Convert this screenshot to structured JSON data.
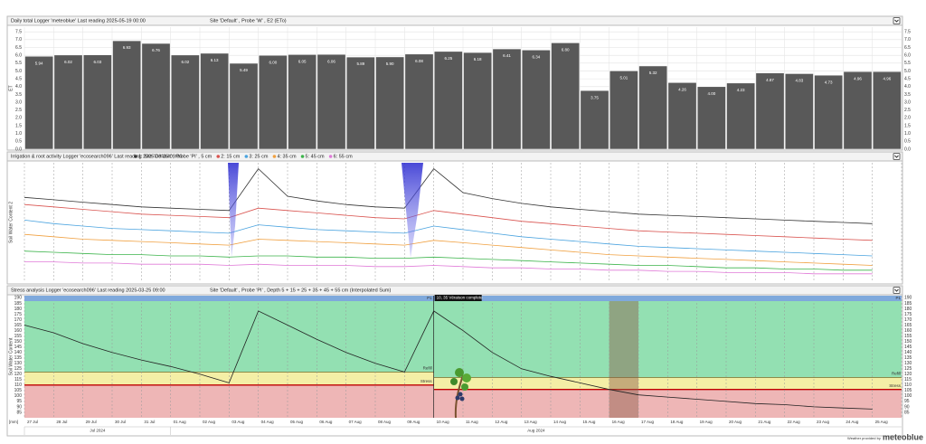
{
  "chart_data": [
    {
      "type": "bar",
      "title": "Daily total   Logger 'meteoblue'   Last reading 2025-05-19 00:00",
      "selector": "Site 'Default' , Probe 'W' , E2 (ETo)",
      "ylabel": "ET",
      "values": [
        5.94,
        6.02,
        6.03,
        6.93,
        6.76,
        6.02,
        6.13,
        5.49,
        6.0,
        6.05,
        6.06,
        5.89,
        5.9,
        6.08,
        6.25,
        6.18,
        6.41,
        6.34,
        6.8,
        3.75,
        5.01,
        5.32,
        4.26,
        4.0,
        4.23,
        4.87,
        4.83,
        4.73,
        4.96,
        4.96
      ],
      "value_labels": [
        "5.94",
        "6.02",
        "6.03",
        "6.93",
        "6.76",
        "6.02",
        "6.13",
        "5.49",
        "6.00",
        "6.05",
        "6.06",
        "5.89",
        "5.90",
        "6.08",
        "6.25",
        "6.18",
        "6.41",
        "6.34",
        "6.80",
        "3.75",
        "5.01",
        "5.32",
        "4.26",
        "4.00",
        "4.23",
        "4.87",
        "4.83",
        "4.73",
        "4.96",
        "4.96"
      ],
      "color": "#595959",
      "ylim": [
        0,
        7.8
      ],
      "yticks": [
        {
          "value": 0,
          "label": "0.0"
        },
        0.5,
        {
          "value": 1,
          "label": "1.0"
        },
        1.5,
        {
          "value": 2,
          "label": "2.0"
        },
        2.5,
        {
          "value": 3,
          "label": "3.0"
        },
        3.5,
        {
          "value": 4,
          "label": "4.0"
        },
        4.5,
        {
          "value": 5,
          "label": "5.0"
        },
        5.5,
        {
          "value": 6,
          "label": "6.0"
        },
        6.5,
        {
          "value": 7,
          "label": "7.0"
        },
        7.5
      ],
      "grid": true
    },
    {
      "type": "line",
      "title": "Irrigation & root activity   Logger 'ecosearch096'   Last reading 2025-03-25 09:00",
      "ylabel": "Soil Water Content 2",
      "ylim": [
        0,
        100
      ],
      "series": [
        {
          "name": "1: Site 'Default' , Probe 'PI' , 5 cm",
          "color": "#333333",
          "values": [
            71,
            69,
            67,
            65,
            63,
            62,
            61,
            60,
            95,
            72,
            68,
            65,
            63,
            62,
            95,
            75,
            70,
            66,
            63,
            61,
            59,
            57,
            56,
            55,
            54,
            53,
            52,
            51,
            50,
            49
          ]
        },
        {
          "name": "2: 15 cm",
          "color": "#d9534f",
          "values": [
            65,
            63,
            61,
            59,
            57,
            56,
            55,
            54,
            62,
            60,
            58,
            56,
            54,
            53,
            60,
            57,
            54,
            51,
            49,
            47,
            45,
            43,
            42,
            41,
            40,
            39,
            38,
            37,
            36,
            35
          ]
        },
        {
          "name": "3: 25 cm",
          "color": "#4aa3df",
          "values": [
            52,
            49,
            47,
            45,
            44,
            43,
            42,
            41,
            48,
            46,
            44,
            43,
            42,
            41,
            47,
            44,
            41,
            38,
            36,
            34,
            32,
            30,
            29,
            28,
            27,
            26,
            25,
            24,
            23,
            22
          ]
        },
        {
          "name": "4: 35 cm",
          "color": "#f0a040",
          "values": [
            40,
            38,
            36,
            35,
            34,
            33,
            32,
            31,
            36,
            35,
            34,
            33,
            32,
            31,
            35,
            33,
            31,
            29,
            27,
            25,
            23,
            22,
            21,
            20,
            19,
            18,
            17,
            16,
            15,
            14
          ]
        },
        {
          "name": "5: 45 cm",
          "color": "#3cb44b",
          "values": [
            26,
            25,
            24,
            23,
            23,
            22,
            22,
            21,
            22,
            22,
            21,
            21,
            20,
            20,
            21,
            20,
            19,
            18,
            17,
            16,
            15,
            14,
            14,
            13,
            12,
            12,
            11,
            11,
            10,
            10
          ]
        },
        {
          "name": "6: 55 cm",
          "color": "#e07ad8",
          "values": [
            17,
            17,
            16,
            16,
            15,
            15,
            15,
            14,
            15,
            14,
            14,
            14,
            13,
            13,
            14,
            13,
            12,
            12,
            11,
            11,
            10,
            10,
            9,
            9,
            8,
            8,
            8,
            7,
            7,
            7
          ]
        }
      ]
    },
    {
      "type": "stress",
      "title": "Stress analysis   Logger 'ecosearch096'   Last reading 2025-03-25 09:00",
      "selector": "Site 'Default' , Probe 'PI' , Depth 5 + 15 + 25 + 35 + 45 + 55 cm (Interpolated Sum)",
      "ylabel": "Soil Water Content",
      "xlabel": "[mm]",
      "categories": [
        "27 Jul",
        "28 Jul",
        "29 Jul",
        "30 Jul",
        "31 Jul",
        "01 Aug",
        "02 Aug",
        "03 Aug",
        "04 Aug",
        "05 Aug",
        "06 Aug",
        "07 Aug",
        "08 Aug",
        "09 Aug",
        "10 Aug",
        "11 Aug",
        "12 Aug",
        "13 Aug",
        "14 Aug",
        "15 Aug",
        "16 Aug",
        "17 Aug",
        "18 Aug",
        "19 Aug",
        "20 Aug",
        "21 Aug",
        "22 Aug",
        "23 Aug",
        "24 Aug",
        "25 Aug"
      ],
      "month_labels": [
        "Jul 2024",
        "Aug 2024"
      ],
      "values": [
        165,
        158,
        148,
        140,
        133,
        127,
        120,
        112,
        178,
        165,
        152,
        140,
        130,
        122,
        178,
        160,
        140,
        125,
        118,
        112,
        106,
        101,
        99,
        97,
        95,
        93,
        92,
        90,
        89,
        88
      ],
      "color": "#222222",
      "ylim": [
        80,
        192
      ],
      "yticks": [
        85,
        90,
        95,
        100,
        105,
        110,
        115,
        120,
        125,
        130,
        135,
        140,
        145,
        150,
        155,
        160,
        165,
        170,
        175,
        180,
        185,
        190
      ],
      "thresholds": [
        {
          "label": "Refill",
          "color": "#6b6b2a",
          "values": [
            122,
            117
          ]
        },
        {
          "label": "Stress",
          "color": "#c00000",
          "values": [
            110,
            106
          ]
        }
      ],
      "phase_label": "P1",
      "annotation": {
        "text": "10, 35 Véraison complete",
        "x": "10 Aug"
      },
      "highlight": "16 Aug"
    }
  ],
  "footer": {
    "text": "Weather provided by",
    "brand": "meteoblue"
  }
}
